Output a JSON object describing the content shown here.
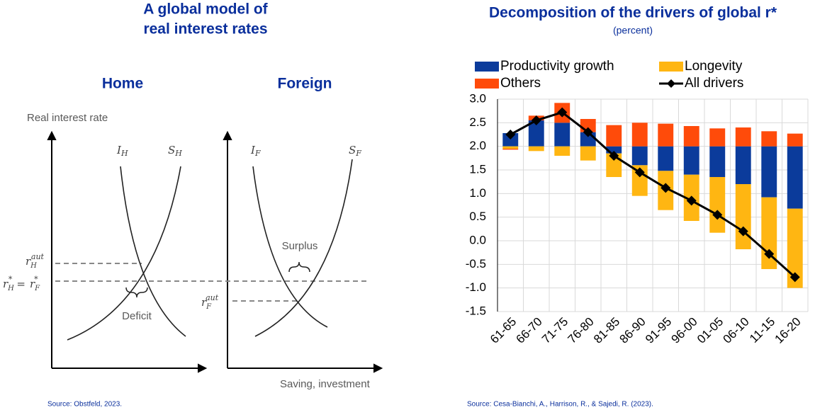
{
  "diagram": {
    "title": [
      "A global model of",
      "real interest rates"
    ],
    "panels": [
      "Home",
      "Foreign"
    ],
    "y_axis_label": "Real interest rate",
    "x_axis_label": "Saving, investment",
    "curves": [
      {
        "symbol": "I",
        "sub": "H"
      },
      {
        "symbol": "S",
        "sub": "H"
      },
      {
        "symbol": "I",
        "sub": "F"
      },
      {
        "symbol": "S",
        "sub": "F"
      }
    ],
    "rates": {
      "home_autarky": {
        "symbol": "r",
        "sub": "H",
        "sup": "aut"
      },
      "world": {
        "left": {
          "symbol": "r",
          "sub": "H",
          "sup": "*"
        },
        "eq": "=",
        "right": {
          "symbol": "r",
          "sub": "F",
          "sup": "*"
        }
      },
      "foreign_autarky": {
        "symbol": "r",
        "sub": "F",
        "sup": "aut"
      }
    },
    "annotations": [
      "Deficit",
      "Surplus"
    ],
    "source": "Source: Obstfeld, 2023."
  },
  "chart_data": {
    "type": "bar",
    "title": "Decomposition of the drivers of global r*",
    "subtitle": "(percent)",
    "categories": [
      "61-65",
      "66-70",
      "71-75",
      "76-80",
      "81-85",
      "86-90",
      "91-95",
      "96-00",
      "01-05",
      "06-10",
      "11-15",
      "16-20"
    ],
    "base": 2,
    "series": [
      {
        "name": "Productivity growth",
        "color": "#0b3b9b",
        "values": [
          0.28,
          0.55,
          0.5,
          0.3,
          -0.15,
          -0.4,
          -0.52,
          -0.6,
          -0.65,
          -0.8,
          -1.08,
          -1.32
        ]
      },
      {
        "name": "Longevity",
        "color": "#ffb612",
        "values": [
          -0.05,
          -0.1,
          -0.2,
          -0.3,
          -0.5,
          -0.65,
          -0.83,
          -0.98,
          -1.18,
          -1.38,
          -1.52,
          -1.68
        ]
      },
      {
        "name": "Others",
        "color": "#ff4b0a",
        "values": [
          -0.02,
          0.1,
          0.42,
          0.28,
          0.45,
          0.5,
          0.48,
          0.43,
          0.38,
          0.4,
          0.32,
          0.27
        ]
      },
      {
        "name": "All drivers",
        "type": "line",
        "color": "#000000",
        "values": [
          2.25,
          2.55,
          2.72,
          2.3,
          1.8,
          1.45,
          1.12,
          0.85,
          0.55,
          0.2,
          -0.28,
          -0.77
        ]
      }
    ],
    "ylim": [
      -1.5,
      3.0
    ],
    "yticks": [
      {
        "value": -1.5,
        "label": "-1.5"
      },
      {
        "value": -1,
        "label": "-1.0"
      },
      {
        "value": -0.5,
        "label": "-0.5"
      },
      {
        "value": 0,
        "label": "0.0"
      },
      0.5,
      {
        "value": 1,
        "label": "1.0"
      },
      1.5,
      {
        "value": 2,
        "label": "2.0"
      },
      2.5,
      {
        "value": 3,
        "label": "3.0"
      }
    ],
    "grid": true,
    "legend": "top",
    "source": "Source: Cesa-Bianchi, A., Harrison, R., & Sajedi, R. (2023)."
  }
}
